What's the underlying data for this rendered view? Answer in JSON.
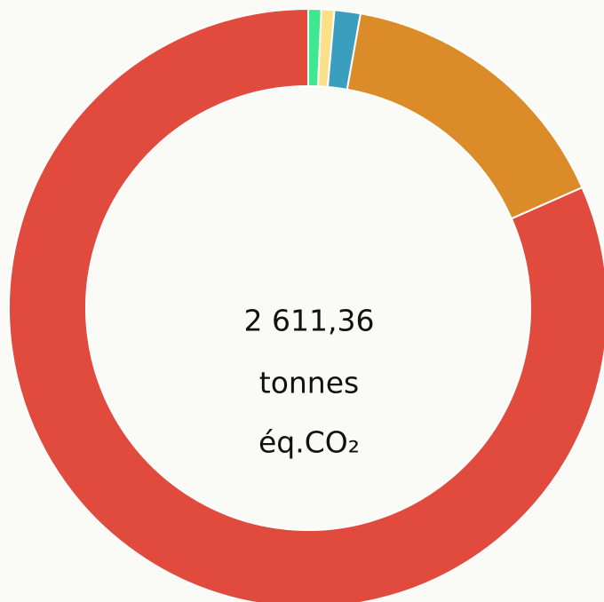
{
  "chart_data": {
    "type": "donut",
    "center_text": [
      "2 611,36",
      "tonnes",
      "éq.CO₂"
    ],
    "values": [
      0.7,
      0.7,
      1.4,
      15.6,
      81.6
    ],
    "colors": [
      "#3de88f",
      "#fbe08a",
      "#3a9fbf",
      "#db8c28",
      "#e04b3e"
    ]
  }
}
